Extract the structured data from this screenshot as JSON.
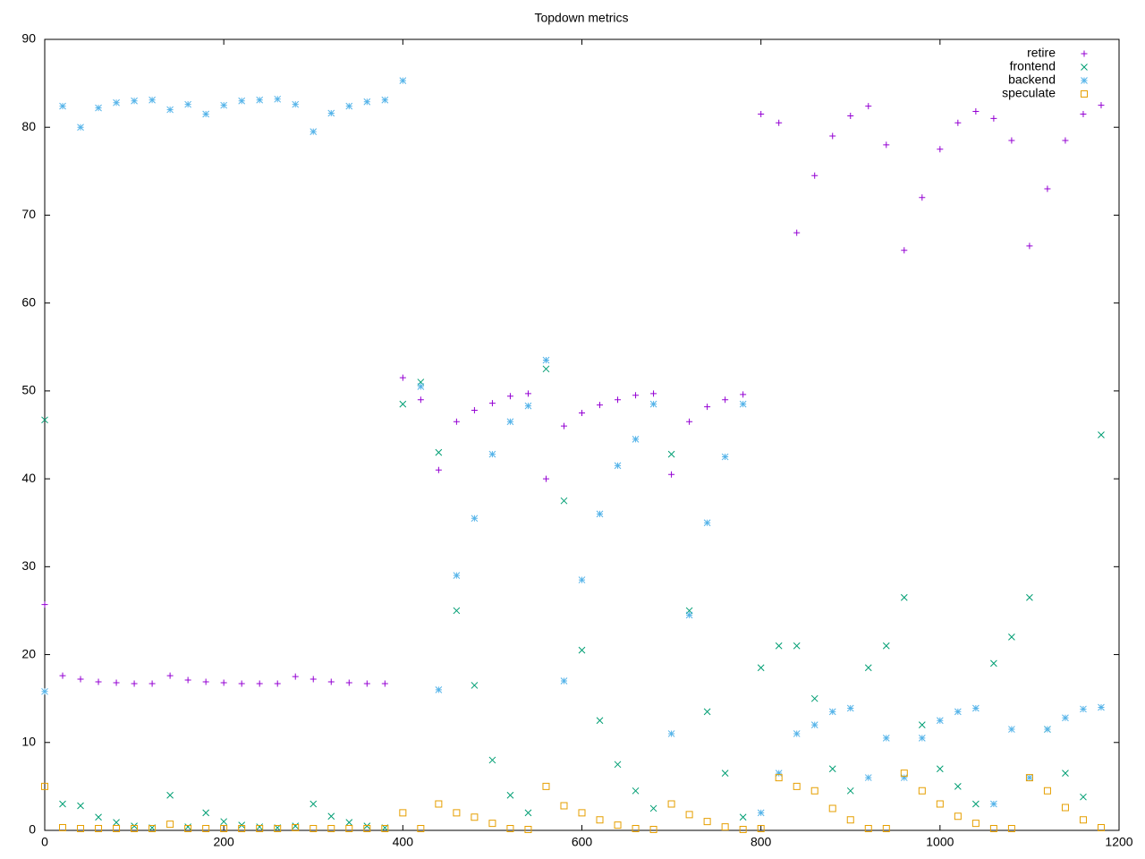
{
  "chart_data": {
    "type": "scatter",
    "title": "Topdown metrics",
    "x": [
      0,
      20,
      40,
      60,
      80,
      100,
      120,
      140,
      160,
      180,
      200,
      220,
      240,
      260,
      280,
      300,
      320,
      340,
      360,
      380,
      400,
      420,
      440,
      460,
      480,
      500,
      520,
      540,
      560,
      580,
      600,
      620,
      640,
      660,
      680,
      700,
      720,
      740,
      760,
      780,
      800,
      820,
      840,
      860,
      880,
      900,
      920,
      940,
      960,
      980,
      1000,
      1020,
      1040,
      1060,
      1080,
      1100,
      1120,
      1140,
      1160,
      1180
    ],
    "xlim": [
      0,
      1200
    ],
    "xticks": [
      0,
      200,
      400,
      600,
      800,
      1000,
      1200
    ],
    "ylim": [
      0,
      90
    ],
    "yticks": [
      0,
      10,
      20,
      30,
      40,
      50,
      60,
      70,
      80,
      90
    ],
    "legend": "top-right",
    "series": [
      {
        "name": "retire",
        "color": "#9400d3",
        "marker": "plus",
        "values": [
          25.7,
          17.6,
          17.2,
          16.9,
          16.8,
          16.7,
          16.7,
          17.6,
          17.1,
          16.9,
          16.8,
          16.7,
          16.7,
          16.7,
          17.5,
          17.2,
          16.9,
          16.8,
          16.7,
          16.7,
          51.5,
          49.0,
          41.0,
          46.5,
          47.8,
          48.6,
          49.4,
          49.7,
          40.0,
          46.0,
          47.5,
          48.4,
          49.0,
          49.5,
          49.7,
          40.5,
          46.5,
          48.2,
          49.0,
          49.6,
          81.5,
          80.5,
          68.0,
          74.5,
          79.0,
          81.3,
          82.4,
          78.0,
          66.0,
          72.0,
          77.5,
          80.5,
          81.8,
          81.0,
          78.5,
          66.5,
          73.0,
          78.5,
          81.5,
          82.5
        ]
      },
      {
        "name": "frontend",
        "color": "#009e73",
        "marker": "cross",
        "values": [
          46.7,
          3.0,
          2.8,
          1.5,
          0.9,
          0.5,
          0.3,
          4.0,
          0.4,
          2.0,
          1.0,
          0.6,
          0.4,
          0.3,
          0.5,
          3.0,
          1.6,
          0.9,
          0.5,
          0.3,
          48.5,
          51.0,
          43.0,
          25.0,
          16.5,
          8.0,
          4.0,
          2.0,
          52.5,
          37.5,
          20.5,
          12.5,
          7.5,
          4.5,
          2.5,
          42.8,
          25.0,
          13.5,
          6.5,
          1.5,
          18.5,
          21.0,
          21.0,
          15.0,
          7.0,
          4.5,
          18.5,
          21.0,
          26.5,
          12.0,
          7.0,
          5.0,
          3.0,
          19.0,
          22.0,
          26.5,
          11.5,
          6.5,
          3.8,
          45.0
        ]
      },
      {
        "name": "backend",
        "color": "#56b4e9",
        "marker": "star",
        "values": [
          15.8,
          82.4,
          80.0,
          82.2,
          82.8,
          83.0,
          83.1,
          82.0,
          82.6,
          81.5,
          82.5,
          83.0,
          83.1,
          83.2,
          82.6,
          79.5,
          81.6,
          82.4,
          82.9,
          83.1,
          85.3,
          50.5,
          16.0,
          29.0,
          35.5,
          42.8,
          46.5,
          48.3,
          53.5,
          17.0,
          28.5,
          36.0,
          41.5,
          44.5,
          48.5,
          11.0,
          24.5,
          35.0,
          42.5,
          48.5,
          2.0,
          6.5,
          11.0,
          12.0,
          13.5,
          13.9,
          6.0,
          10.5,
          6.0,
          10.5,
          12.5,
          13.5,
          13.9,
          3.0,
          11.5,
          6.0,
          11.5,
          12.8,
          13.8,
          14.0
        ]
      },
      {
        "name": "speculate",
        "color": "#e69f00",
        "marker": "square",
        "values": [
          5.0,
          0.3,
          0.2,
          0.2,
          0.2,
          0.2,
          0.2,
          0.7,
          0.2,
          0.2,
          0.2,
          0.2,
          0.2,
          0.2,
          0.3,
          0.2,
          0.2,
          0.2,
          0.2,
          0.2,
          2.0,
          0.2,
          3.0,
          2.0,
          1.5,
          0.8,
          0.2,
          0.1,
          5.0,
          2.8,
          2.0,
          1.2,
          0.6,
          0.2,
          0.1,
          3.0,
          1.8,
          1.0,
          0.4,
          0.1,
          0.2,
          6.0,
          5.0,
          4.5,
          2.5,
          1.2,
          0.2,
          0.2,
          6.5,
          4.5,
          3.0,
          1.6,
          0.8,
          0.2,
          0.2,
          6.0,
          4.5,
          2.6,
          1.2,
          0.3
        ]
      }
    ]
  }
}
